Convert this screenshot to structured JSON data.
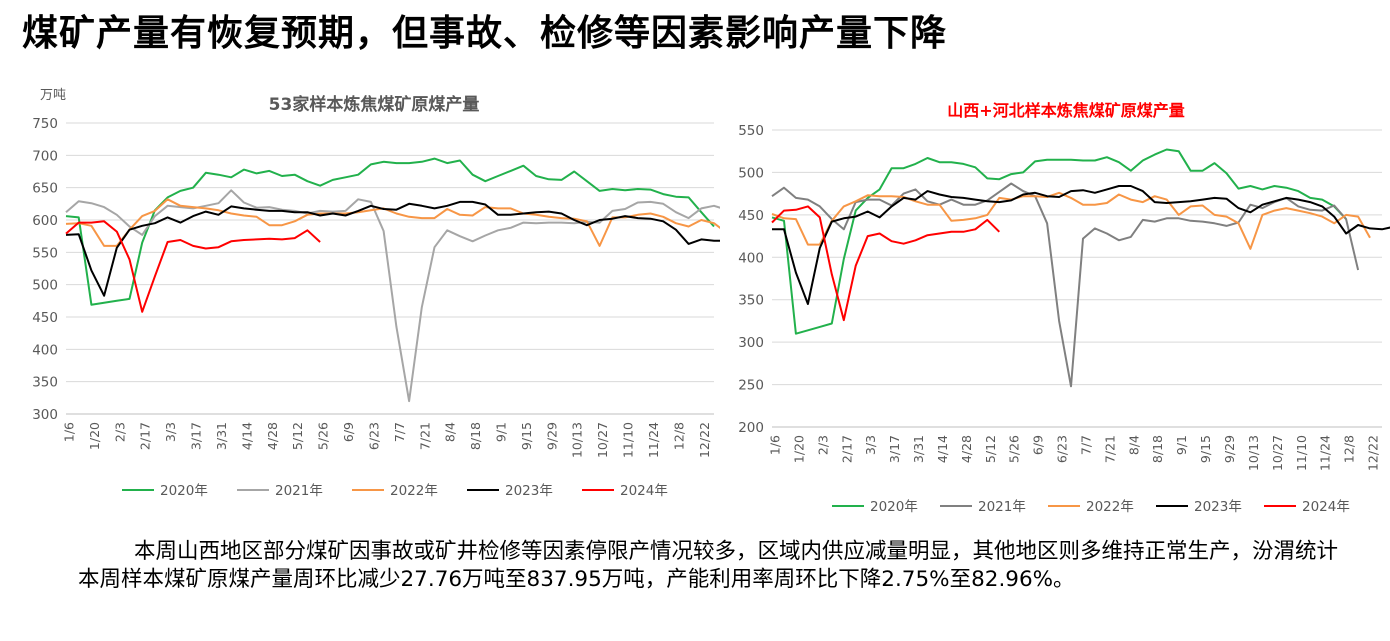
{
  "page": {
    "title": "煤矿产量有恢复预期，但事故、检修等因素影响产量下降",
    "paragraph": "本周山西地区部分煤矿因事故或矿井检修等因素停限产情况较多，区域内供应减量明显，其他地区则多维持正常生产，汾渭统计本周样本煤矿原煤产量周环比减少27.76万吨至837.95万吨，产能利用率周环比下降2.75%至82.96%。"
  },
  "chart_data": [
    {
      "type": "line",
      "title": "53家样本炼焦煤矿原煤产量",
      "unit_label": "万吨",
      "ylim": [
        300,
        750
      ],
      "yticks": [
        300,
        350,
        400,
        450,
        500,
        550,
        600,
        650,
        700,
        750
      ],
      "x_ticks": [
        "1/6",
        "1/20",
        "2/3",
        "2/17",
        "3/3",
        "3/17",
        "3/31",
        "4/14",
        "4/28",
        "5/12",
        "5/26",
        "6/9",
        "6/23",
        "7/7",
        "7/21",
        "8/4",
        "8/18",
        "9/1",
        "9/15",
        "9/29",
        "10/13",
        "10/27",
        "11/10",
        "11/24",
        "12/8",
        "12/22"
      ],
      "grid": true,
      "legend_position": "bottom",
      "series": [
        {
          "name": "2020年",
          "color": "#22b14c",
          "values": [
            606,
            604,
            469,
            472,
            475,
            478,
            565,
            615,
            635,
            645,
            650,
            673,
            670,
            666,
            678,
            672,
            676,
            668,
            670,
            660,
            653,
            662,
            666,
            670,
            686,
            690,
            688,
            688,
            690,
            695,
            688,
            692,
            670,
            660,
            668,
            676,
            684,
            668,
            663,
            662,
            675,
            660,
            645,
            648,
            646,
            648,
            647,
            640,
            636,
            635,
            612,
            590
          ]
        },
        {
          "name": "2021年",
          "color": "#a6a6a6",
          "values": [
            612,
            629,
            626,
            620,
            608,
            590,
            577,
            606,
            622,
            620,
            618,
            622,
            626,
            646,
            627,
            619,
            620,
            616,
            614,
            610,
            614,
            613,
            614,
            632,
            628,
            583,
            435,
            320,
            465,
            558,
            584,
            575,
            567,
            576,
            584,
            588,
            596,
            595,
            596,
            596,
            595,
            597,
            596,
            614,
            617,
            627,
            628,
            625,
            612,
            603,
            618,
            622,
            616,
            604,
            541
          ]
        },
        {
          "name": "2022年",
          "color": "#f79646",
          "values": [
            594,
            595,
            591,
            560,
            560,
            585,
            606,
            614,
            632,
            622,
            620,
            618,
            615,
            610,
            607,
            605,
            592,
            592,
            598,
            608,
            610,
            610,
            610,
            612,
            615,
            618,
            610,
            605,
            603,
            603,
            617,
            608,
            607,
            620,
            618,
            618,
            610,
            608,
            605,
            603,
            602,
            598,
            560,
            604,
            604,
            608,
            610,
            605,
            595,
            590,
            600,
            595,
            580,
            562
          ]
        },
        {
          "name": "2023年",
          "color": "#000000",
          "values": [
            577,
            578,
            522,
            483,
            557,
            585,
            591,
            595,
            604,
            596,
            606,
            613,
            608,
            621,
            618,
            616,
            614,
            614,
            612,
            612,
            607,
            610,
            607,
            614,
            622,
            617,
            616,
            625,
            622,
            618,
            622,
            628,
            628,
            624,
            608,
            608,
            610,
            612,
            613,
            610,
            600,
            592,
            600,
            602,
            606,
            603,
            602,
            598,
            585,
            563,
            570,
            568,
            568,
            570,
            560
          ]
        },
        {
          "name": "2024年",
          "color": "#ff0000",
          "values": [
            579,
            596,
            596,
            598,
            582,
            539,
            458,
            513,
            566,
            569,
            560,
            556,
            558,
            567,
            569,
            570,
            571,
            570,
            572,
            584,
            566
          ]
        }
      ]
    },
    {
      "type": "line",
      "title": "山西+河北样本炼焦煤矿原煤产量",
      "ylim": [
        200,
        550
      ],
      "yticks": [
        200,
        250,
        300,
        350,
        400,
        450,
        500,
        550
      ],
      "x_ticks": [
        "1/6",
        "1/20",
        "2/3",
        "2/17",
        "3/3",
        "3/17",
        "3/31",
        "4/14",
        "4/28",
        "5/12",
        "5/26",
        "6/9",
        "6/23",
        "7/7",
        "7/21",
        "8/4",
        "8/18",
        "9/1",
        "9/15",
        "9/29",
        "10/13",
        "10/27",
        "11/10",
        "11/24",
        "12/8",
        "12/22"
      ],
      "grid": true,
      "legend_position": "bottom",
      "series": [
        {
          "name": "2020年",
          "color": "#22b14c",
          "values": [
            447,
            443,
            310,
            314,
            318,
            322,
            398,
            455,
            470,
            480,
            505,
            505,
            510,
            517,
            512,
            512,
            510,
            506,
            493,
            492,
            498,
            500,
            513,
            515,
            515,
            515,
            514,
            514,
            518,
            512,
            502,
            514,
            521,
            527,
            525,
            502,
            502,
            511,
            499,
            481,
            484,
            480,
            484,
            482,
            478,
            470,
            468,
            460,
            445
          ]
        },
        {
          "name": "2021年",
          "color": "#808080",
          "values": [
            472,
            482,
            470,
            468,
            460,
            445,
            433,
            465,
            468,
            468,
            461,
            475,
            480,
            466,
            462,
            468,
            462,
            462,
            467,
            477,
            487,
            478,
            472,
            440,
            325,
            248,
            422,
            434,
            428,
            420,
            424,
            444,
            442,
            446,
            446,
            443,
            442,
            440,
            437,
            441,
            462,
            458,
            465,
            470,
            460,
            456,
            455,
            461,
            445,
            385
          ]
        },
        {
          "name": "2022年",
          "color": "#f79646",
          "values": [
            451,
            446,
            445,
            415,
            415,
            443,
            460,
            466,
            473,
            472,
            472,
            471,
            466,
            462,
            462,
            443,
            444,
            446,
            450,
            470,
            468,
            472,
            472,
            471,
            476,
            470,
            462,
            462,
            464,
            474,
            468,
            465,
            472,
            468,
            450,
            460,
            461,
            450,
            448,
            440,
            410,
            450,
            455,
            458,
            455,
            452,
            448,
            440,
            450,
            448,
            423
          ]
        },
        {
          "name": "2023年",
          "color": "#000000",
          "values": [
            433,
            433,
            382,
            345,
            411,
            442,
            446,
            448,
            454,
            447,
            460,
            470,
            468,
            478,
            474,
            471,
            470,
            468,
            466,
            465,
            467,
            474,
            476,
            472,
            471,
            478,
            479,
            476,
            480,
            484,
            484,
            478,
            465,
            464,
            465,
            466,
            468,
            470,
            469,
            458,
            453,
            462,
            466,
            470,
            468,
            465,
            460,
            448,
            428,
            438,
            434,
            433,
            436,
            422
          ]
        },
        {
          "name": "2024年",
          "color": "#ff0000",
          "values": [
            441,
            455,
            456,
            460,
            447,
            380,
            326,
            390,
            425,
            428,
            419,
            416,
            420,
            426,
            428,
            430,
            430,
            433,
            444,
            430
          ]
        }
      ]
    }
  ]
}
